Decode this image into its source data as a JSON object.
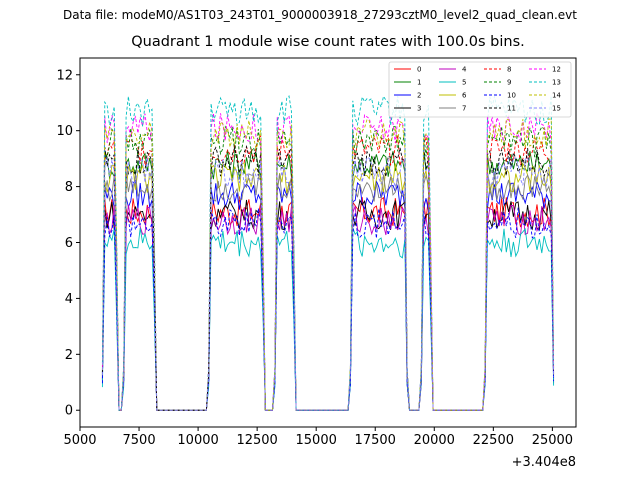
{
  "header": {
    "suptitle": "Data file: modeM0/AS1T03_243T01_9000003918_27293cztM0_level2_quad_clean.evt"
  },
  "chart_data": {
    "type": "line",
    "title": "Quadrant 1 module wise count rates with 100.0s bins.",
    "xlabel": "",
    "ylabel": "",
    "x_offset_label": "+3.404e8",
    "xlim": [
      5000,
      26000
    ],
    "ylim": [
      -0.6,
      12.6
    ],
    "x_ticks": [
      5000,
      7500,
      10000,
      12500,
      15000,
      17500,
      20000,
      22500,
      25000
    ],
    "x_tick_labels": [
      "5000",
      "7500",
      "10000",
      "12500",
      "15000",
      "17500",
      "20000",
      "22500",
      "25000"
    ],
    "y_ticks": [
      0,
      2,
      4,
      6,
      8,
      10,
      12
    ],
    "y_tick_labels": [
      "0",
      "2",
      "4",
      "6",
      "8",
      "10",
      "12"
    ],
    "legend_location": "upper right",
    "on_intervals": [
      [
        5950,
        6600
      ],
      [
        6850,
        8200
      ],
      [
        10450,
        12800
      ],
      [
        13250,
        14100
      ],
      [
        16450,
        18850
      ],
      [
        19450,
        19900
      ],
      [
        22150,
        25050
      ]
    ],
    "series": [
      {
        "name": "0",
        "color": "#ff0000",
        "dash": "solid",
        "level": 7.1
      },
      {
        "name": "1",
        "color": "#008000",
        "dash": "solid",
        "level": 8.8
      },
      {
        "name": "2",
        "color": "#0000ff",
        "dash": "solid",
        "level": 7.7
      },
      {
        "name": "3",
        "color": "#000000",
        "dash": "solid",
        "level": 7.0
      },
      {
        "name": "4",
        "color": "#bf00bf",
        "dash": "solid",
        "level": 6.8
      },
      {
        "name": "5",
        "color": "#00bfbf",
        "dash": "solid",
        "level": 6.0
      },
      {
        "name": "6",
        "color": "#bfbf00",
        "dash": "solid",
        "level": 8.3
      },
      {
        "name": "7",
        "color": "#808080",
        "dash": "solid",
        "level": 8.0
      },
      {
        "name": "8",
        "color": "#ff0000",
        "dash": "dashed",
        "level": 9.3
      },
      {
        "name": "9",
        "color": "#008000",
        "dash": "dashed",
        "level": 9.6
      },
      {
        "name": "10",
        "color": "#0000ff",
        "dash": "dashed",
        "level": 6.7
      },
      {
        "name": "11",
        "color": "#000000",
        "dash": "dashed",
        "level": 8.9
      },
      {
        "name": "12",
        "color": "#ff00ff",
        "dash": "dashed",
        "level": 10.1
      },
      {
        "name": "13",
        "color": "#00bfbf",
        "dash": "dashed",
        "level": 10.7
      },
      {
        "name": "14",
        "color": "#bfbf00",
        "dash": "dashed",
        "level": 9.9
      },
      {
        "name": "15",
        "color": "#8080ff",
        "dash": "dashed",
        "level": 8.5
      }
    ]
  }
}
